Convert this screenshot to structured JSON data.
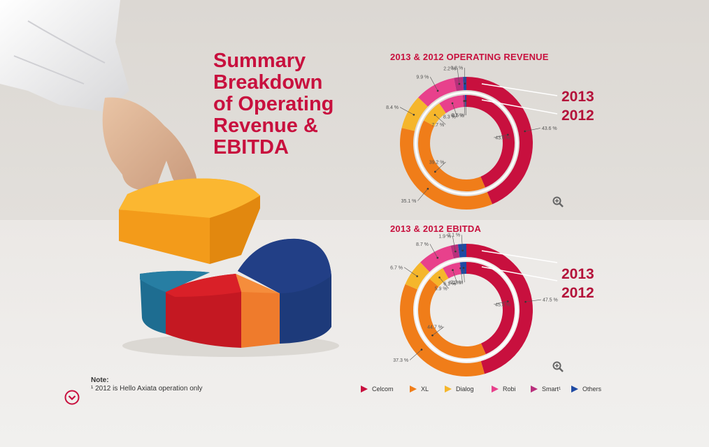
{
  "page": {
    "title": "Summary\nBreakdown\nof Operating\nRevenue &\nEBITDA",
    "note_title": "Note:",
    "note_text": "¹ 2012 is Hello Axiata operation only"
  },
  "colors": {
    "Celcom": "#c8103e",
    "XL": "#f07d19",
    "Dialog": "#f5b62b",
    "Robi": "#e8418c",
    "Smart": "#b92f7c",
    "Others": "#1f4aa3"
  },
  "icons": [
    "zoom-icon",
    "chevron-down-icon"
  ],
  "legend": [
    {
      "label": "Celcom",
      "color": "#c8103e"
    },
    {
      "label": "XL",
      "color": "#f07d19"
    },
    {
      "label": "Dialog",
      "color": "#f5b62b"
    },
    {
      "label": "Robi",
      "color": "#e8418c"
    },
    {
      "label": "Smart¹",
      "color": "#b92f7c"
    },
    {
      "label": "Others",
      "color": "#1f4aa3"
    }
  ],
  "chart_data": [
    {
      "type": "pie",
      "variant": "nested-donut",
      "title": "2013 & 2012 OPERATING REVENUE",
      "ring_labels": {
        "outer": "2013",
        "inner": "2012"
      },
      "categories": [
        "Celcom",
        "XL",
        "Dialog",
        "Robi",
        "Smart¹",
        "Others"
      ],
      "series": [
        {
          "name": "2013",
          "values": [
            43.6,
            35.1,
            8.4,
            9.9,
            2.2,
            0.8
          ],
          "labels": [
            "43.6 %",
            "35.1 %",
            "8.4 %",
            "9.9 %",
            "2.2 %",
            "0.8 %"
          ]
        },
        {
          "name": "2012",
          "values": [
            43.6,
            39.2,
            7.7,
            8.3,
            0.7,
            0.5
          ],
          "labels": [
            "43.6 %",
            "39.2 %",
            "7.7 %",
            "8.3 %",
            "0.7 %",
            "0.5 %"
          ]
        }
      ]
    },
    {
      "type": "pie",
      "variant": "nested-donut",
      "title": "2013 & 2012 EBITDA",
      "ring_labels": {
        "outer": "2013",
        "inner": "2012"
      },
      "categories": [
        "Celcom",
        "XL",
        "Dialog",
        "Robi",
        "Smart¹",
        "Others"
      ],
      "series": [
        {
          "name": "2013",
          "values": [
            47.5,
            37.3,
            6.7,
            8.7,
            1.9,
            -2.1
          ],
          "labels": [
            "47.5 %",
            "37.3 %",
            "6.7 %",
            "8.7 %",
            "1.9 %",
            "-2.1 %"
          ]
        },
        {
          "name": "2012",
          "values": [
            45.3,
            44.7,
            5.9,
            6.1,
            0.2,
            -2.2
          ],
          "labels": [
            "45.3 %",
            "44.7 %",
            "5.9 %",
            "6.1 %",
            "0.2 %",
            "-2.2 %"
          ]
        }
      ]
    }
  ]
}
